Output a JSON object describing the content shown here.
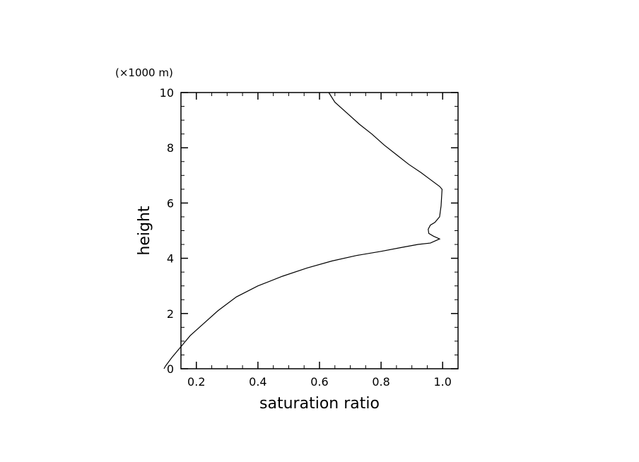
{
  "chart_data": {
    "type": "line",
    "title": "",
    "xlabel": "saturation ratio",
    "ylabel": "height",
    "y_unit_label": "(×1000 m)",
    "xlim": [
      0.15,
      1.05
    ],
    "ylim": [
      0,
      10
    ],
    "x_ticks": [
      0.2,
      0.4,
      0.6,
      0.8,
      1.0
    ],
    "x_tick_labels": [
      "0.2",
      "0.4",
      "0.6",
      "0.8",
      "1.0"
    ],
    "y_ticks": [
      0,
      2,
      4,
      6,
      8,
      10
    ],
    "y_tick_labels": [
      "0",
      "2",
      "4",
      "6",
      "8",
      "10"
    ],
    "x_minor_step": 0.05,
    "y_minor_step": 0.5,
    "grid": false,
    "line_color": "#000000",
    "series": [
      {
        "x": [
          0.095,
          0.1,
          0.12,
          0.15,
          0.18,
          0.22,
          0.27,
          0.33,
          0.4,
          0.48,
          0.56,
          0.64,
          0.72,
          0.8,
          0.87,
          0.92,
          0.96,
          0.99,
          0.97,
          0.955,
          0.953,
          0.96,
          0.975,
          0.99,
          0.995,
          0.998,
          0.99,
          0.96,
          0.93,
          0.89,
          0.85,
          0.81,
          0.77,
          0.73,
          0.69,
          0.65,
          0.63
        ],
        "y": [
          0.0,
          0.1,
          0.4,
          0.8,
          1.2,
          1.6,
          2.1,
          2.6,
          3.0,
          3.35,
          3.65,
          3.9,
          4.1,
          4.25,
          4.4,
          4.5,
          4.55,
          4.7,
          4.8,
          4.9,
          5.05,
          5.2,
          5.3,
          5.5,
          5.9,
          6.5,
          6.6,
          6.85,
          7.1,
          7.4,
          7.75,
          8.1,
          8.5,
          8.85,
          9.25,
          9.65,
          10.0
        ]
      }
    ]
  }
}
